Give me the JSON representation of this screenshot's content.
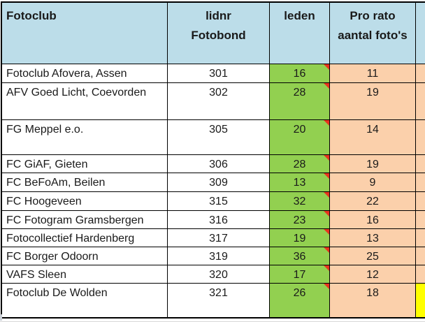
{
  "colors": {
    "header_bg": "#BCDDE9",
    "leden_bg": "#92D050",
    "pro_rato_bg": "#FBD0AB",
    "highlight_bg": "#FFFF00",
    "comment_marker": "#E8351F",
    "grid_border": "#000000",
    "text": "#1A1A1A"
  },
  "table": {
    "headers": {
      "fotoclub": "Fotoclub",
      "lidnr": "lidnr\nFotobond",
      "leden": "leden",
      "pro_rato": "Pro rato\naantal foto's"
    },
    "rows": [
      {
        "club": "Fotoclub Afovera, Assen",
        "lidnr": "301",
        "leden": "16",
        "pro_rato": "11"
      },
      {
        "club": "AFV Goed Licht, Coevorden",
        "lidnr": "302",
        "leden": "28",
        "pro_rato": "19"
      },
      {
        "club": "FG Meppel e.o.",
        "lidnr": "305",
        "leden": "20",
        "pro_rato": "14"
      },
      {
        "club": "FC GiAF, Gieten",
        "lidnr": "306",
        "leden": "28",
        "pro_rato": "19"
      },
      {
        "club": "FC BeFoAm, Beilen",
        "lidnr": "309",
        "leden": "13",
        "pro_rato": "9"
      },
      {
        "club": "FC Hoogeveen",
        "lidnr": "315",
        "leden": "32",
        "pro_rato": "22"
      },
      {
        "club": "FC Fotogram Gramsbergen",
        "lidnr": "316",
        "leden": "23",
        "pro_rato": "16"
      },
      {
        "club": "Fotocollectief Hardenberg",
        "lidnr": "317",
        "leden": "19",
        "pro_rato": "13"
      },
      {
        "club": "FC Borger Odoorn",
        "lidnr": "319",
        "leden": "36",
        "pro_rato": "25"
      },
      {
        "club": "VAFS Sleen",
        "lidnr": "320",
        "leden": "17",
        "pro_rato": "12"
      },
      {
        "club": "Fotoclub De Wolden",
        "lidnr": "321",
        "leden": "26",
        "pro_rato": "18"
      }
    ]
  }
}
